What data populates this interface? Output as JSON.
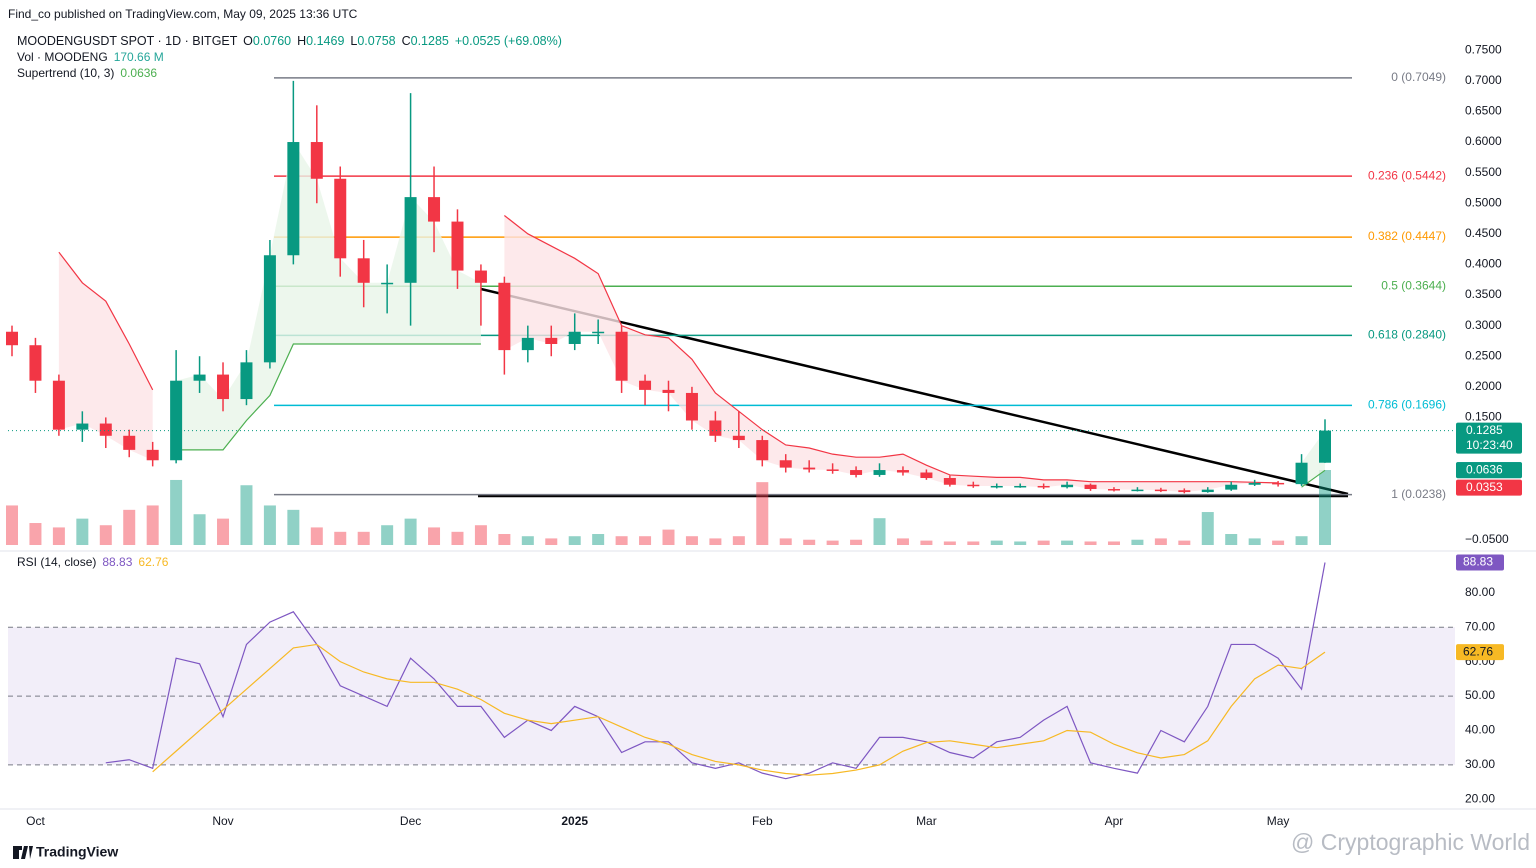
{
  "header": {
    "publisher": "Find_co published on TradingView.com, May 09, 2025 13:36 UTC",
    "footer_logo": "TradingView",
    "watermark": "@ Cryptographic World"
  },
  "chart_data": [
    {
      "type": "candlestick",
      "title": "MOODENGUSDT SPOT · 1D · BITGET",
      "legend_values": [
        "O",
        "0.0760",
        "H",
        "0.1469",
        "L",
        "0.0758",
        "C",
        "0.1285",
        "+0.0525 (+69.08%)"
      ],
      "categories": [
        null,
        "Oct",
        null,
        null,
        null,
        null,
        null,
        null,
        null,
        "Nov",
        null,
        null,
        null,
        null,
        null,
        null,
        null,
        "Dec",
        null,
        null,
        null,
        null,
        null,
        null,
        "2025",
        null,
        null,
        null,
        null,
        null,
        null,
        null,
        "Feb",
        null,
        null,
        null,
        null,
        null,
        null,
        "Mar",
        null,
        null,
        null,
        null,
        null,
        null,
        null,
        "Apr",
        null,
        null,
        null,
        null,
        null,
        null,
        "May",
        null,
        null
      ],
      "open": [
        0.29,
        0.268,
        0.21,
        0.13,
        0.14,
        0.12,
        0.097,
        0.08,
        0.21,
        0.22,
        0.18,
        0.24,
        0.415,
        0.6,
        0.54,
        0.41,
        0.37,
        0.37,
        0.51,
        0.47,
        0.39,
        0.37,
        0.26,
        0.28,
        0.27,
        0.29,
        0.29,
        0.21,
        0.195,
        0.19,
        0.145,
        0.12,
        0.113,
        0.08,
        0.068,
        0.065,
        0.064,
        0.056,
        0.064,
        0.06,
        0.051,
        0.04,
        0.038,
        0.038,
        0.038,
        0.036,
        0.04,
        0.033,
        0.032,
        0.032,
        0.031,
        0.028,
        0.032,
        0.04,
        0.043,
        0.041,
        0.076
      ],
      "high": [
        0.3,
        0.28,
        0.22,
        0.16,
        0.15,
        0.13,
        0.11,
        0.26,
        0.25,
        0.24,
        0.26,
        0.44,
        0.7,
        0.66,
        0.56,
        0.44,
        0.4,
        0.68,
        0.56,
        0.49,
        0.4,
        0.38,
        0.3,
        0.3,
        0.32,
        0.31,
        0.3,
        0.22,
        0.21,
        0.2,
        0.16,
        0.16,
        0.12,
        0.09,
        0.08,
        0.075,
        0.07,
        0.075,
        0.07,
        0.065,
        0.055,
        0.045,
        0.042,
        0.042,
        0.042,
        0.045,
        0.042,
        0.036,
        0.036,
        0.035,
        0.034,
        0.036,
        0.045,
        0.048,
        0.046,
        0.09,
        0.1469
      ],
      "low": [
        0.25,
        0.19,
        0.12,
        0.11,
        0.1,
        0.085,
        0.07,
        0.075,
        0.19,
        0.16,
        0.17,
        0.23,
        0.4,
        0.5,
        0.38,
        0.33,
        0.32,
        0.3,
        0.42,
        0.36,
        0.3,
        0.22,
        0.24,
        0.25,
        0.26,
        0.27,
        0.19,
        0.17,
        0.16,
        0.13,
        0.11,
        0.1,
        0.07,
        0.06,
        0.06,
        0.058,
        0.052,
        0.053,
        0.055,
        0.048,
        0.037,
        0.035,
        0.034,
        0.035,
        0.033,
        0.034,
        0.03,
        0.029,
        0.029,
        0.028,
        0.026,
        0.027,
        0.03,
        0.038,
        0.037,
        0.038,
        0.0758
      ],
      "close": [
        0.268,
        0.21,
        0.13,
        0.14,
        0.12,
        0.097,
        0.08,
        0.21,
        0.22,
        0.18,
        0.24,
        0.415,
        0.6,
        0.54,
        0.41,
        0.37,
        0.37,
        0.51,
        0.47,
        0.39,
        0.37,
        0.26,
        0.28,
        0.27,
        0.29,
        0.29,
        0.21,
        0.195,
        0.19,
        0.145,
        0.12,
        0.113,
        0.08,
        0.068,
        0.065,
        0.064,
        0.056,
        0.064,
        0.06,
        0.051,
        0.04,
        0.038,
        0.038,
        0.038,
        0.036,
        0.04,
        0.033,
        0.032,
        0.032,
        0.031,
        0.028,
        0.032,
        0.04,
        0.043,
        0.041,
        0.076,
        0.1285
      ],
      "up_color": "#089981",
      "down_color": "#f23645",
      "ylim": [
        -0.065,
        0.77
      ],
      "yticks": [
        {
          "value": 0.75,
          "label": "0.7500"
        },
        {
          "value": 0.7,
          "label": "0.7000"
        },
        {
          "value": 0.65,
          "label": "0.6500"
        },
        {
          "value": 0.6,
          "label": "0.6000"
        },
        {
          "value": 0.55,
          "label": "0.5500"
        },
        {
          "value": 0.5,
          "label": "0.5000"
        },
        {
          "value": 0.45,
          "label": "0.4500"
        },
        {
          "value": 0.4,
          "label": "0.4000"
        },
        {
          "value": 0.35,
          "label": "0.3500"
        },
        {
          "value": 0.3,
          "label": "0.3000"
        },
        {
          "value": 0.25,
          "label": "0.2500"
        },
        {
          "value": 0.2,
          "label": "0.2000"
        },
        {
          "value": 0.15,
          "label": "0.1500"
        },
        {
          "value": -0.05,
          "label": "−0.0500"
        }
      ],
      "volume": {
        "name": "Vol · MOODENG",
        "value_label": "170.66 M",
        "color": "#26a69a",
        "values": [
          90,
          50,
          40,
          60,
          45,
          80,
          90,
          148,
          70,
          60,
          136,
          90,
          80,
          40,
          30,
          30,
          45,
          60,
          40,
          30,
          45,
          25,
          20,
          15,
          20,
          25,
          20,
          20,
          35,
          20,
          15,
          20,
          143,
          15,
          12,
          10,
          12,
          61,
          15,
          10,
          8,
          8,
          10,
          8,
          10,
          10,
          8,
          8,
          12,
          15,
          10,
          75,
          25,
          15,
          10,
          20,
          170.66
        ]
      },
      "supertrend": {
        "name": "Supertrend (10, 3)",
        "value_label": "0.0636",
        "up_color": "#4caf50",
        "down_color": "#f23645",
        "up_values": [
          null,
          null,
          null,
          null,
          null,
          null,
          null,
          0.097,
          0.097,
          0.097,
          0.145,
          0.186,
          0.27,
          0.27,
          0.27,
          0.27,
          0.27,
          0.27,
          0.27,
          0.27,
          0.27,
          null,
          null,
          null,
          null,
          null,
          null,
          null,
          null,
          null,
          null,
          null,
          null,
          null,
          null,
          null,
          null,
          null,
          null,
          null,
          null,
          null,
          null,
          null,
          null,
          null,
          null,
          null,
          null,
          null,
          null,
          null,
          null,
          null,
          null,
          0.036,
          0.0636
        ],
        "down_values": [
          null,
          null,
          0.42,
          0.37,
          0.34,
          0.27,
          0.195,
          null,
          null,
          null,
          null,
          null,
          null,
          null,
          null,
          null,
          null,
          null,
          null,
          null,
          null,
          0.48,
          0.45,
          0.43,
          0.41,
          0.385,
          0.3,
          0.285,
          0.28,
          0.245,
          0.19,
          0.16,
          0.13,
          0.105,
          0.1,
          0.09,
          0.085,
          0.085,
          0.09,
          0.072,
          0.056,
          0.054,
          0.052,
          0.052,
          0.048,
          0.048,
          0.045,
          0.045,
          0.045,
          0.045,
          0.045,
          0.045,
          0.045,
          0.044,
          0.043,
          null,
          null
        ]
      },
      "fib_levels": [
        {
          "label": "0 (0.7049)",
          "value": 0.7049,
          "color": "#787b86"
        },
        {
          "label": "0.236 (0.5442)",
          "value": 0.5442,
          "color": "#f23645"
        },
        {
          "label": "0.382 (0.4447)",
          "value": 0.4447,
          "color": "#ff9800"
        },
        {
          "label": "0.5 (0.3644)",
          "value": 0.3644,
          "color": "#4caf50"
        },
        {
          "label": "0.618 (0.2840)",
          "value": 0.284,
          "color": "#089981"
        },
        {
          "label": "0.786 (0.1696)",
          "value": 0.1696,
          "color": "#00bcd4"
        },
        {
          "label": "1 (0.0238)",
          "value": 0.0238,
          "color": "#787b86"
        }
      ],
      "last_price_badge": {
        "value": 0.1285,
        "label": "0.1285",
        "countdown": "10:23:40",
        "color": "#089981"
      },
      "badges": [
        {
          "value": 0.0636,
          "label": "0.0636",
          "color": "#089981"
        },
        {
          "value": 0.0353,
          "label": "0.0353",
          "color": "#f23645"
        }
      ]
    },
    {
      "type": "line",
      "title": "RSI (14, close)",
      "series": [
        {
          "color": "#7e57c2",
          "value_label": "88.83",
          "values": [
            null,
            null,
            null,
            null,
            30.6,
            31.5,
            29,
            61,
            59.4,
            44,
            65,
            71.5,
            74.5,
            65,
            53,
            50,
            47,
            61,
            55,
            47,
            47,
            38,
            43,
            40,
            47,
            44,
            33.6,
            36.7,
            36.7,
            30.6,
            29,
            30.6,
            27.6,
            26,
            27.6,
            30.6,
            29,
            38,
            38,
            36.7,
            33.6,
            32,
            36.7,
            38,
            43,
            47,
            30.6,
            29,
            27.6,
            40,
            36.7,
            47,
            65,
            65,
            61,
            52,
            88.83
          ]
        },
        {
          "color": "#f7b924",
          "value_label": "62.76",
          "values": [
            null,
            null,
            null,
            null,
            null,
            null,
            28,
            34,
            40,
            46,
            52,
            58,
            64,
            65,
            60,
            57,
            55,
            54,
            54,
            52,
            49,
            45,
            43,
            42,
            43,
            44,
            41,
            38,
            36,
            33,
            31,
            30,
            28.5,
            27.5,
            27,
            27.5,
            28.5,
            30,
            34,
            36.5,
            37,
            36,
            35,
            36,
            37,
            40,
            39.5,
            36,
            33.5,
            32,
            33,
            37,
            47,
            55,
            59,
            58,
            62.76
          ]
        }
      ],
      "ylim": [
        15,
        91
      ],
      "yticks": [
        {
          "value": 80,
          "label": "80.00"
        },
        {
          "value": 70,
          "label": "70.00"
        },
        {
          "value": 60,
          "label": "60.00"
        },
        {
          "value": 50,
          "label": "50.00"
        },
        {
          "value": 40,
          "label": "40.00"
        },
        {
          "value": 30,
          "label": "30.00"
        },
        {
          "value": 20,
          "label": "20.00"
        }
      ],
      "levels": [
        70,
        50,
        30
      ],
      "band": [
        30,
        70
      ],
      "band_color": "#7e57c2"
    }
  ]
}
